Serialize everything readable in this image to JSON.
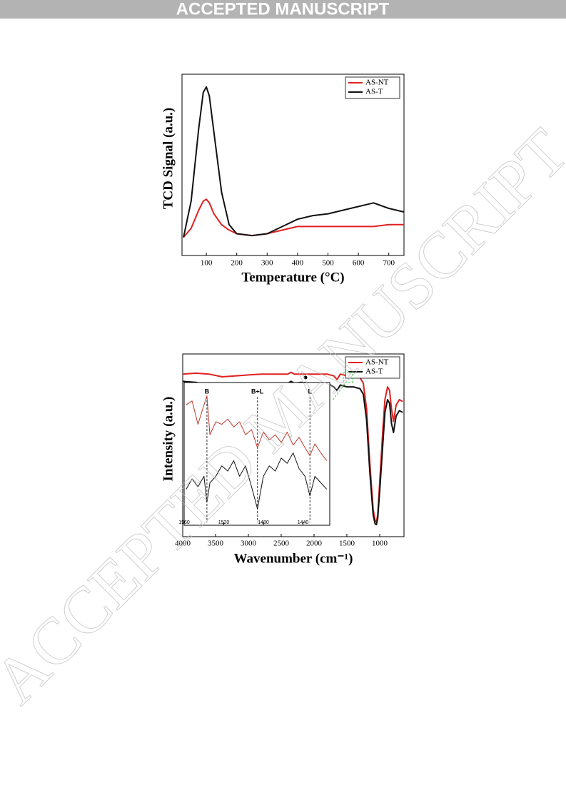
{
  "header": "ACCEPTED MANUSCRIPT",
  "watermark": "ACCEPTED MANUSCRIPT",
  "chart_data": [
    {
      "type": "line",
      "ylabel": "TCD Signal (a.u.)",
      "xlabel": "Temperature (°C)",
      "x": [
        25,
        50,
        75,
        90,
        100,
        110,
        125,
        150,
        175,
        200,
        250,
        300,
        350,
        400,
        450,
        500,
        550,
        600,
        650,
        700,
        750
      ],
      "xlim": [
        20,
        750
      ],
      "xticks": [
        100,
        200,
        300,
        400,
        500,
        600,
        700
      ],
      "ylim": [
        0,
        100
      ],
      "legend": "top-right",
      "series": [
        {
          "name": "AS-NT",
          "color": "#e02020",
          "values": [
            10,
            15,
            25,
            30,
            31,
            29,
            23,
            17,
            14,
            12,
            11,
            12,
            14,
            16,
            16,
            16,
            16,
            16,
            16,
            17,
            17
          ]
        },
        {
          "name": "AS-T",
          "color": "#111111",
          "values": [
            10,
            30,
            70,
            90,
            93,
            88,
            68,
            35,
            17,
            12,
            11,
            12,
            16,
            20,
            22,
            23,
            25,
            27,
            29,
            26,
            24
          ]
        }
      ]
    },
    {
      "type": "line",
      "ylabel": "Intensity (a.u.)",
      "xlabel": "Wavenumber (cm⁻¹)",
      "x": [
        4000,
        3800,
        3600,
        3400,
        3200,
        3000,
        2800,
        2600,
        2400,
        2350,
        2300,
        2200,
        2000,
        1800,
        1700,
        1650,
        1600,
        1500,
        1400,
        1300,
        1250,
        1200,
        1150,
        1100,
        1070,
        1050,
        1030,
        1000,
        950,
        920,
        880,
        850,
        820,
        790,
        750,
        700,
        650
      ],
      "xlim": [
        4000,
        630
      ],
      "xticks": [
        4000,
        3500,
        3000,
        2500,
        2000,
        1500,
        1000
      ],
      "ylim": [
        0,
        100
      ],
      "legend": "top-right",
      "series": [
        {
          "name": "AS-NT",
          "color": "#e02020",
          "values": [
            89,
            89.5,
            89,
            87.5,
            88,
            88.5,
            89,
            89,
            89,
            90,
            89,
            89,
            89,
            89,
            88,
            86,
            89,
            88,
            88,
            87,
            84,
            70,
            40,
            15,
            9,
            8,
            12,
            30,
            60,
            75,
            82,
            80,
            70,
            63,
            72,
            75,
            74
          ]
        },
        {
          "name": "AS-T",
          "color": "#111111",
          "values": [
            85,
            84.5,
            83,
            81,
            82,
            83.5,
            84,
            84,
            84,
            85,
            84,
            84.5,
            84,
            84,
            82,
            80,
            83,
            82,
            82,
            81,
            78,
            64,
            35,
            12,
            7,
            6.6,
            10,
            25,
            52,
            68,
            75,
            73,
            62,
            57,
            66,
            69,
            68
          ]
        }
      ]
    },
    {
      "type": "line",
      "x": [
        1558,
        1552,
        1546,
        1540,
        1537,
        1534,
        1528,
        1522,
        1516,
        1510,
        1504,
        1498,
        1492,
        1486,
        1480,
        1474,
        1468,
        1462,
        1456,
        1450,
        1444,
        1438,
        1433,
        1428,
        1422,
        1416
      ],
      "xlim": [
        1560,
        1413
      ],
      "xticks": [
        1560,
        1520,
        1480,
        1440
      ],
      "ylim": [
        0,
        100
      ],
      "vlines": [
        {
          "x": 1537,
          "label": "B"
        },
        {
          "x": 1486,
          "label": "B+L"
        },
        {
          "x": 1433,
          "label": "L"
        }
      ],
      "series": [
        {
          "color": "#c0392b",
          "values": [
            85,
            88,
            70,
            85,
            92,
            62,
            72,
            70,
            74,
            68,
            72,
            62,
            66,
            52,
            64,
            58,
            62,
            56,
            64,
            54,
            60,
            52,
            46,
            55,
            48,
            42
          ]
        },
        {
          "color": "#111111",
          "values": [
            20,
            28,
            22,
            30,
            10,
            25,
            30,
            38,
            34,
            42,
            30,
            38,
            22,
            5,
            30,
            38,
            34,
            44,
            40,
            48,
            36,
            30,
            15,
            30,
            25,
            20
          ]
        }
      ]
    }
  ]
}
